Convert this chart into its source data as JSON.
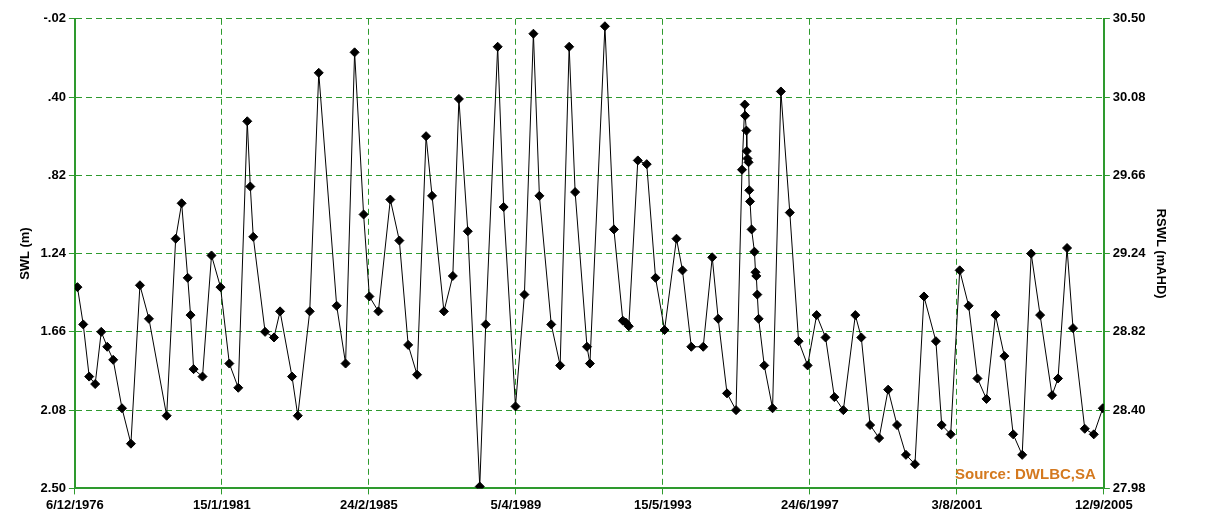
{
  "chart_data": {
    "type": "line",
    "ylabel": "SWL (m)",
    "y2label": "RSWL (mAHD)",
    "annotations": [
      "Source: DWLBC,SA"
    ],
    "x": [
      "1977-01",
      "1977-03",
      "1977-05",
      "1977-07",
      "1977-09",
      "1977-11",
      "1978-01",
      "1978-04",
      "1978-07",
      "1978-10",
      "1979-01",
      "1979-07",
      "1979-10",
      "1979-12",
      "1980-02",
      "1980-03",
      "1980-04",
      "1980-07",
      "1980-10",
      "1981-01",
      "1981-04",
      "1981-07",
      "1981-10",
      "1981-11",
      "1981-12",
      "1982-04",
      "1982-07",
      "1982-09",
      "1983-01",
      "1983-03",
      "1983-07",
      "1983-10",
      "1984-04",
      "1984-07",
      "1984-10",
      "1985-01",
      "1985-03",
      "1985-06",
      "1985-10",
      "1986-01",
      "1986-04",
      "1986-07",
      "1986-10",
      "1986-12",
      "1987-04",
      "1987-07",
      "1987-09",
      "1987-12",
      "1988-04",
      "1988-06",
      "1988-10",
      "1988-12",
      "1989-04",
      "1989-07",
      "1989-10",
      "1989-12",
      "1990-04",
      "1990-07",
      "1990-10",
      "1990-12",
      "1991-04",
      "1991-05",
      "1991-10",
      "1992-01",
      "1992-04",
      "1992-05",
      "1992-06",
      "1992-09",
      "1992-12",
      "1993-03",
      "1993-06",
      "1993-10",
      "1993-12",
      "1994-03",
      "1994-07",
      "1994-10",
      "1994-12",
      "1995-03",
      "1995-06",
      "1995-08",
      "1995-08-29",
      "1995-09-02",
      "1995-09-15",
      "1995-09-19",
      "1995-09-26",
      "1995-10-07",
      "1995-10-14",
      "1995-10-22",
      "1995-11-07",
      "1995-12-06",
      "1995-12-17",
      "1995-12-25",
      "1996-01-04",
      "1996-01-18",
      "1996-03-15",
      "1996-06-08",
      "1996-09",
      "1996-12",
      "1997-03",
      "1997-06",
      "1997-09",
      "1997-12",
      "1998-03",
      "1998-06",
      "1998-10",
      "1998-12",
      "1999-03",
      "1999-06",
      "1999-09",
      "1999-12",
      "2000-03",
      "2000-06",
      "2000-09",
      "2001-01",
      "2001-03",
      "2001-06",
      "2001-09",
      "2001-12",
      "2002-03",
      "2002-06",
      "2002-09",
      "2002-12",
      "2003-03",
      "2003-06",
      "2003-09",
      "2003-12",
      "2004-04",
      "2004-06",
      "2004-09",
      "2004-11",
      "2005-03",
      "2005-06",
      "2005-09"
    ],
    "series": [
      {
        "color": "#000000",
        "values": [
          1.42,
          1.62,
          1.9,
          1.94,
          1.66,
          1.74,
          1.81,
          2.07,
          2.26,
          1.41,
          1.59,
          2.11,
          1.16,
          0.97,
          1.37,
          1.57,
          1.86,
          1.9,
          1.25,
          1.42,
          1.83,
          1.96,
          0.53,
          0.88,
          1.15,
          1.66,
          1.69,
          1.55,
          1.9,
          2.11,
          1.55,
          0.27,
          1.52,
          1.83,
          0.16,
          1.03,
          1.47,
          1.55,
          0.95,
          1.17,
          1.73,
          1.89,
          0.61,
          0.93,
          1.55,
          1.36,
          0.41,
          1.12,
          2.49,
          1.62,
          0.13,
          0.99,
          2.06,
          1.46,
          0.06,
          0.93,
          1.62,
          1.84,
          0.13,
          0.91,
          1.74,
          1.83,
          0.02,
          1.11,
          1.6,
          1.61,
          1.63,
          0.74,
          0.76,
          1.37,
          1.65,
          1.16,
          1.33,
          1.74,
          1.74,
          1.26,
          1.59,
          1.99,
          2.08,
          0.79,
          0.44,
          0.5,
          0.58,
          0.69,
          0.73,
          0.75,
          0.9,
          0.96,
          1.11,
          1.23,
          1.34,
          1.36,
          1.46,
          1.59,
          1.84,
          2.07,
          0.37,
          1.02,
          1.71,
          1.84,
          1.57,
          1.69,
          2.01,
          2.08,
          1.57,
          1.69,
          2.16,
          2.23,
          1.97,
          2.16,
          2.32,
          2.37,
          1.47,
          1.71,
          2.16,
          2.21,
          1.33,
          1.52,
          1.91,
          2.02,
          1.57,
          1.79,
          2.21,
          2.32,
          1.24,
          1.57,
          2.0,
          1.91,
          1.21,
          1.64,
          2.18,
          2.21,
          2.07
        ]
      }
    ],
    "xlim": [
      "1976-12-06",
      "2005-09-12"
    ],
    "xticks": [
      {
        "value": "1976-12-06",
        "label": "6/12/1976"
      },
      {
        "value": "1981-01-15",
        "label": "15/1/1981"
      },
      {
        "value": "1985-02-24",
        "label": "24/2/1985"
      },
      {
        "value": "1989-04-05",
        "label": "5/4/1989"
      },
      {
        "value": "1993-05-15",
        "label": "15/5/1993"
      },
      {
        "value": "1997-06-24",
        "label": "24/6/1997"
      },
      {
        "value": "2001-08-03",
        "label": "3/8/2001"
      },
      {
        "value": "2005-09-12",
        "label": "12/9/2005"
      }
    ],
    "ylim": [
      2.5,
      -0.02
    ],
    "yticks": [
      {
        "value": -0.02,
        "label": "-.02"
      },
      {
        "value": 0.4,
        "label": ".40"
      },
      {
        "value": 0.82,
        "label": ".82"
      },
      {
        "value": 1.24,
        "label": "1.24"
      },
      {
        "value": 1.66,
        "label": "1.66"
      },
      {
        "value": 2.08,
        "label": "2.08"
      },
      {
        "value": 2.5,
        "label": "2.50"
      }
    ],
    "y2lim": [
      27.98,
      30.5
    ],
    "y2ticks": [
      {
        "value": 27.98,
        "label": "27.98"
      },
      {
        "value": 28.4,
        "label": "28.40"
      },
      {
        "value": 28.82,
        "label": "28.82"
      },
      {
        "value": 29.24,
        "label": "29.24"
      },
      {
        "value": 29.66,
        "label": "29.66"
      },
      {
        "value": 30.08,
        "label": "30.08"
      },
      {
        "value": 30.5,
        "label": "30.50"
      }
    ],
    "grid": true,
    "legend": false,
    "marker": "diamond",
    "line_style": "solid"
  }
}
